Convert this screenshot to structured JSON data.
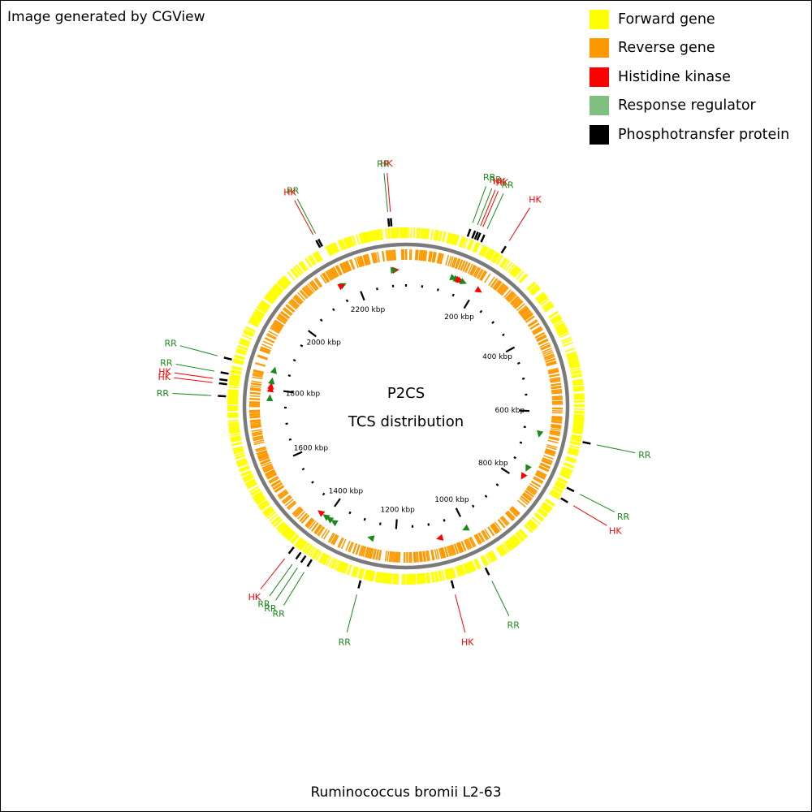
{
  "credit": "Image generated by CGView",
  "legend": [
    {
      "label": "Forward gene",
      "color": "#ffff00"
    },
    {
      "label": "Reverse gene",
      "color": "#ff9900"
    },
    {
      "label": "Histidine kinase",
      "color": "#ff0000"
    },
    {
      "label": "Response regulator",
      "color": "#7fbf7f"
    },
    {
      "label": "Phosphotransfer protein",
      "color": "#000000"
    }
  ],
  "center_title": "P2CS",
  "center_subtitle": "TCS distribution",
  "organism": "Ruminococcus bromii L2-63",
  "genome_kbp": 2340,
  "tick_labels": [
    {
      "kbp": 200,
      "label": "200 kbp"
    },
    {
      "kbp": 400,
      "label": "400 kbp"
    },
    {
      "kbp": 600,
      "label": "600 kbp"
    },
    {
      "kbp": 800,
      "label": "800 kbp"
    },
    {
      "kbp": 1000,
      "label": "1000 kbp"
    },
    {
      "kbp": 1200,
      "label": "1200 kbp"
    },
    {
      "kbp": 1400,
      "label": "1400 kbp"
    },
    {
      "kbp": 1600,
      "label": "1600 kbp"
    },
    {
      "kbp": 1800,
      "label": "1800 kbp"
    },
    {
      "kbp": 2000,
      "label": "2000 kbp"
    },
    {
      "kbp": 2200,
      "label": "2200 kbp"
    }
  ],
  "annotations": [
    {
      "label": "HK",
      "type": "HK",
      "kbp": 2310
    },
    {
      "label": "RR",
      "type": "RR",
      "kbp": 2305
    },
    {
      "label": "RR",
      "type": "RR",
      "kbp": 2160
    },
    {
      "label": "HK",
      "type": "HK",
      "kbp": 2155
    },
    {
      "label": "RR",
      "type": "RR",
      "kbp": 130
    },
    {
      "label": "RR",
      "type": "RR",
      "kbp": 140
    },
    {
      "label": "HK",
      "type": "HK",
      "kbp": 146
    },
    {
      "label": "HK",
      "type": "HK",
      "kbp": 151
    },
    {
      "label": "RR",
      "type": "RR",
      "kbp": 160
    },
    {
      "label": "HK",
      "type": "HK",
      "kbp": 208
    },
    {
      "label": "RR",
      "type": "RR",
      "kbp": 660
    },
    {
      "label": "RR",
      "type": "RR",
      "kbp": 760
    },
    {
      "label": "HK",
      "type": "HK",
      "kbp": 785
    },
    {
      "label": "RR",
      "type": "RR",
      "kbp": 1000
    },
    {
      "label": "HK",
      "type": "HK",
      "kbp": 1075
    },
    {
      "label": "RR",
      "type": "RR",
      "kbp": 1265
    },
    {
      "label": "RR",
      "type": "RR",
      "kbp": 1375
    },
    {
      "label": "RR",
      "type": "RR",
      "kbp": 1390
    },
    {
      "label": "RR",
      "type": "RR",
      "kbp": 1402
    },
    {
      "label": "HK",
      "type": "HK",
      "kbp": 1420
    },
    {
      "label": "RR",
      "type": "RR",
      "kbp": 1775
    },
    {
      "label": "HK",
      "type": "HK",
      "kbp": 1800
    },
    {
      "label": "HK",
      "type": "HK",
      "kbp": 1808
    },
    {
      "label": "RR",
      "type": "RR",
      "kbp": 1822
    },
    {
      "label": "RR",
      "type": "RR",
      "kbp": 1852
    }
  ]
}
